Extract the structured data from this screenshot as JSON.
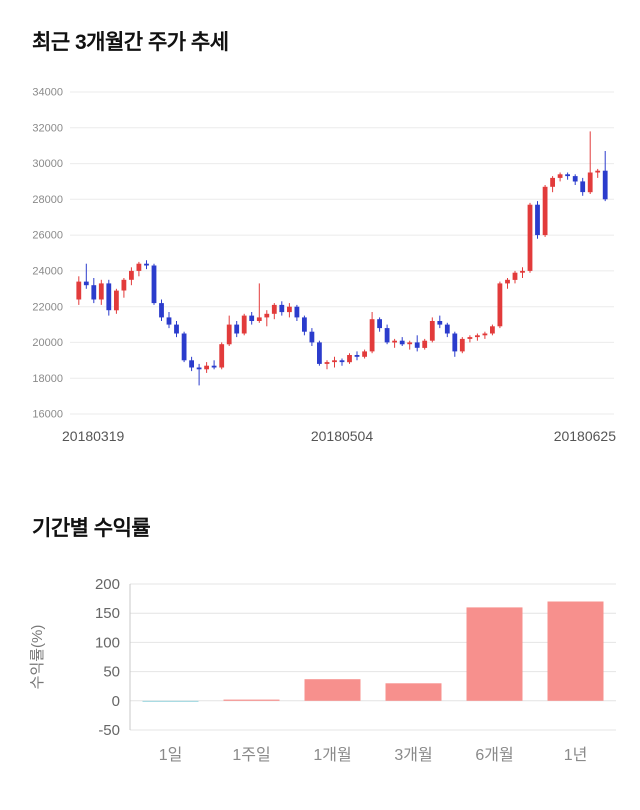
{
  "price_section": {
    "title": "최근 3개월간 주가 추세"
  },
  "returns_section": {
    "title": "기간별 수익률"
  },
  "chart_data": [
    {
      "type": "candlestick",
      "title": "최근 3개월간 주가 추세",
      "ylim": [
        16000,
        34000
      ],
      "yticks": [
        16000,
        18000,
        20000,
        22000,
        24000,
        26000,
        28000,
        30000,
        32000,
        34000
      ],
      "xticklabels": [
        "20180319",
        "20180504",
        "20180625"
      ],
      "colors": {
        "up": "#e23b3b",
        "down": "#2b3ccc",
        "grid": "#ebebeb"
      },
      "candles": [
        [
          22400,
          23700,
          22100,
          23400
        ],
        [
          23400,
          24400,
          23000,
          23200
        ],
        [
          23200,
          23600,
          22200,
          22400
        ],
        [
          22400,
          23500,
          22100,
          23300
        ],
        [
          23300,
          23500,
          21500,
          21800
        ],
        [
          21800,
          23000,
          21600,
          22900
        ],
        [
          22900,
          23600,
          22500,
          23500
        ],
        [
          23500,
          24200,
          23200,
          24000
        ],
        [
          24000,
          24500,
          23700,
          24400
        ],
        [
          24400,
          24600,
          24100,
          24300
        ],
        [
          24300,
          24400,
          22100,
          22200
        ],
        [
          22200,
          22400,
          21200,
          21400
        ],
        [
          21400,
          21700,
          20800,
          21000
        ],
        [
          21000,
          21200,
          20300,
          20500
        ],
        [
          20500,
          20600,
          18900,
          19000
        ],
        [
          19000,
          19200,
          18400,
          18600
        ],
        [
          18600,
          18800,
          17600,
          18500
        ],
        [
          18500,
          18900,
          18300,
          18700
        ],
        [
          18700,
          19000,
          18500,
          18600
        ],
        [
          18600,
          20000,
          18500,
          19900
        ],
        [
          19900,
          21500,
          19800,
          21000
        ],
        [
          21000,
          21200,
          20300,
          20500
        ],
        [
          20500,
          21600,
          20400,
          21500
        ],
        [
          21500,
          21700,
          21000,
          21200
        ],
        [
          21200,
          23300,
          21100,
          21400
        ],
        [
          21400,
          21800,
          20900,
          21600
        ],
        [
          21600,
          22200,
          21300,
          22100
        ],
        [
          22100,
          22300,
          21500,
          21700
        ],
        [
          21700,
          22200,
          21400,
          22000
        ],
        [
          22000,
          22100,
          21200,
          21400
        ],
        [
          21400,
          21500,
          20400,
          20600
        ],
        [
          20600,
          20800,
          19800,
          20000
        ],
        [
          20000,
          20100,
          18700,
          18800
        ],
        [
          18800,
          19000,
          18500,
          18900
        ],
        [
          18900,
          19200,
          18600,
          19000
        ],
        [
          19000,
          19100,
          18700,
          18900
        ],
        [
          18900,
          19400,
          18800,
          19300
        ],
        [
          19300,
          19500,
          19000,
          19200
        ],
        [
          19200,
          19600,
          19100,
          19500
        ],
        [
          19500,
          21700,
          19400,
          21300
        ],
        [
          21300,
          21400,
          20600,
          20800
        ],
        [
          20800,
          21000,
          19900,
          20000
        ],
        [
          20000,
          20200,
          19700,
          20100
        ],
        [
          20100,
          20300,
          19800,
          19900
        ],
        [
          19900,
          20100,
          19600,
          20000
        ],
        [
          20000,
          20400,
          19500,
          19700
        ],
        [
          19700,
          20200,
          19600,
          20100
        ],
        [
          20100,
          21400,
          20000,
          21200
        ],
        [
          21200,
          21500,
          20800,
          21000
        ],
        [
          21000,
          21100,
          20300,
          20500
        ],
        [
          20500,
          20600,
          19200,
          19500
        ],
        [
          19500,
          20300,
          19400,
          20200
        ],
        [
          20200,
          20400,
          20000,
          20300
        ],
        [
          20300,
          20500,
          20100,
          20400
        ],
        [
          20400,
          20600,
          20200,
          20500
        ],
        [
          20500,
          21000,
          20400,
          20900
        ],
        [
          20900,
          23400,
          20800,
          23300
        ],
        [
          23300,
          23600,
          23000,
          23500
        ],
        [
          23500,
          24000,
          23300,
          23900
        ],
        [
          23900,
          24200,
          23600,
          24000
        ],
        [
          24000,
          27800,
          23900,
          27700
        ],
        [
          27700,
          27900,
          25800,
          26000
        ],
        [
          26000,
          28800,
          25900,
          28700
        ],
        [
          28700,
          29300,
          28400,
          29200
        ],
        [
          29200,
          29500,
          29000,
          29400
        ],
        [
          29400,
          29500,
          29100,
          29300
        ],
        [
          29300,
          29400,
          28800,
          29000
        ],
        [
          29000,
          29200,
          28200,
          28400
        ],
        [
          28400,
          31800,
          28300,
          29500
        ],
        [
          29500,
          29700,
          29200,
          29600
        ],
        [
          29600,
          30700,
          27900,
          28000
        ]
      ]
    },
    {
      "type": "bar",
      "title": "기간별 수익률",
      "ylabel": "수익률(%)",
      "categories": [
        "1일",
        "1주일",
        "1개월",
        "3개월",
        "6개월",
        "1년"
      ],
      "values": [
        -2,
        2,
        37,
        30,
        160,
        170
      ],
      "bar_colors": [
        "#a9dbe3",
        "#f7908d",
        "#f7908d",
        "#f7908d",
        "#f7908d",
        "#f7908d"
      ],
      "ylim": [
        -50,
        200
      ],
      "yticks": [
        200,
        150,
        100,
        50,
        0,
        -50
      ],
      "grid": true,
      "legend": false
    }
  ]
}
